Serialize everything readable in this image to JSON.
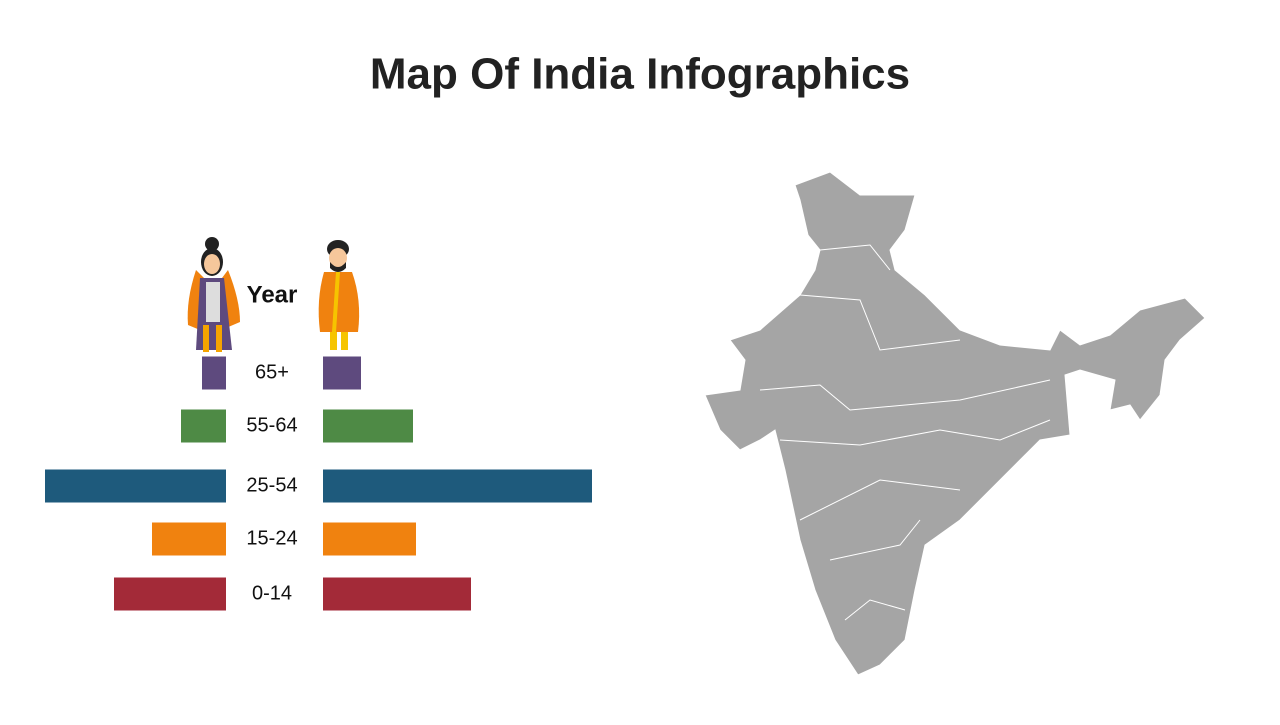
{
  "chart_data": {
    "type": "pyramid",
    "title": "Map Of India Infographics",
    "category_label": "Year",
    "categories": [
      "65+",
      "55-64",
      "25-54",
      "15-24",
      "0-14"
    ],
    "colors": [
      "#5e4a7e",
      "#4e8a45",
      "#1e5a7c",
      "#f0820f",
      "#a32a38"
    ],
    "series": [
      {
        "values": [
          24,
          45,
          181,
          74,
          112
        ]
      },
      {
        "values": [
          38,
          90,
          269,
          93,
          148
        ]
      }
    ]
  }
}
